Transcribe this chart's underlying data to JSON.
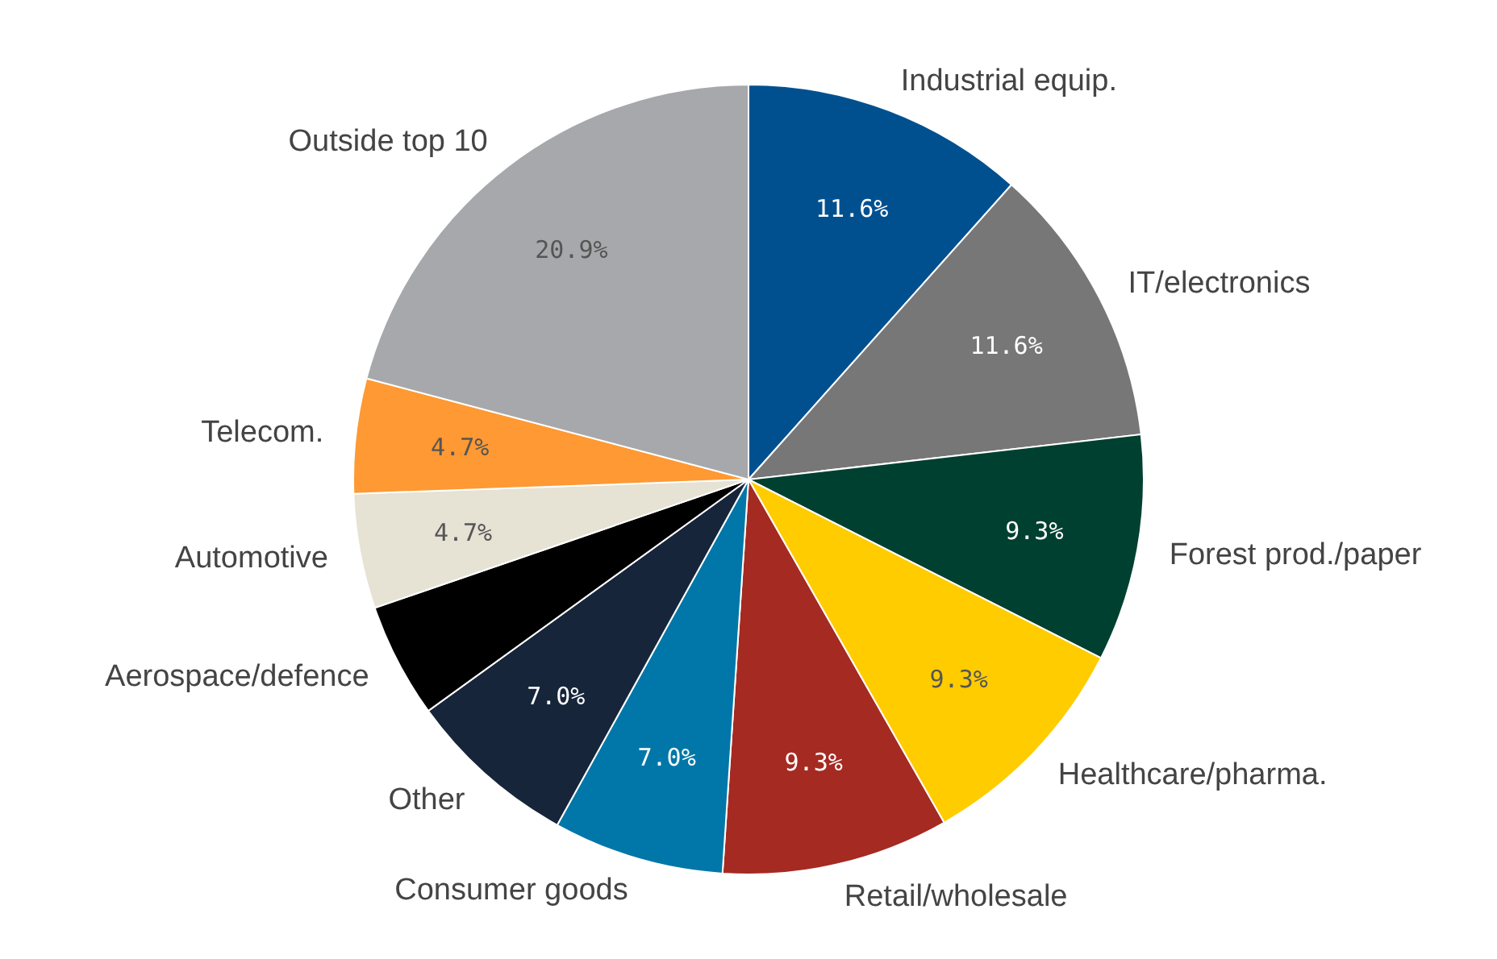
{
  "chart_data": {
    "type": "pie",
    "categories": [
      "Industrial equip.",
      "IT/electronics",
      "Forest prod./paper",
      "Healthcare/pharma.",
      "Retail/wholesale",
      "Consumer goods",
      "Other",
      "Aerospace/defence",
      "Automotive",
      "Telecom.",
      "Outside top 10"
    ],
    "values": [
      11.6,
      11.6,
      9.3,
      9.3,
      9.3,
      7.0,
      7.0,
      4.7,
      4.7,
      4.7,
      20.9
    ],
    "value_labels": [
      "11.6%",
      "11.6%",
      "9.3%",
      "9.3%",
      "9.3%",
      "7.0%",
      "7.0%",
      null,
      "4.7%",
      "4.7%",
      "20.9%"
    ],
    "colors": [
      "#00508f",
      "#777777",
      "#004030",
      "#ffcc00",
      "#a52a22",
      "#0077a8",
      "#16253a",
      "#000000",
      "#e6e2d4",
      "#ff9933",
      "#a6a8ab"
    ],
    "legend": false
  }
}
